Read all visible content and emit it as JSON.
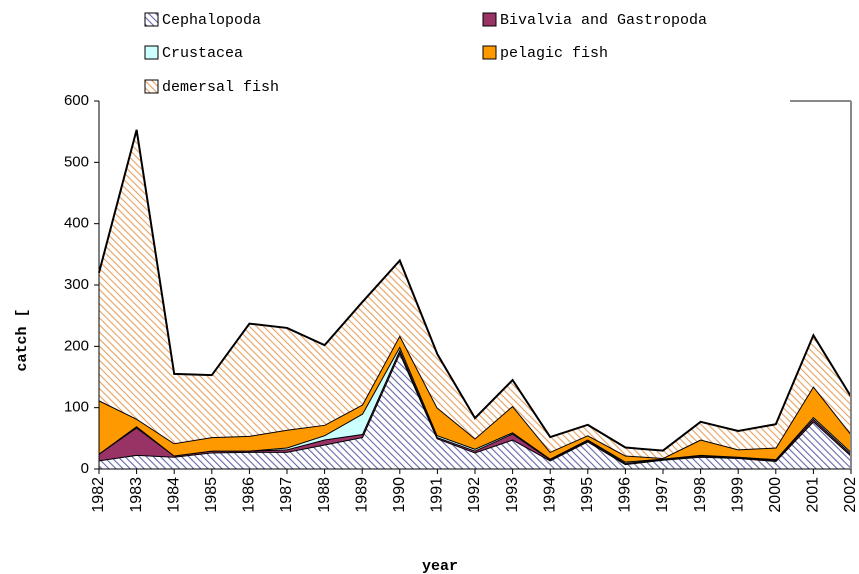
{
  "chart_data": {
    "type": "stacked-area",
    "x_label": "year",
    "y_label": "catch [",
    "categories": [
      "1982",
      "1983",
      "1984",
      "1985",
      "1986",
      "1987",
      "1988",
      "1989",
      "1990",
      "1991",
      "1992",
      "1993",
      "1994",
      "1995",
      "1996",
      "1997",
      "1998",
      "1999",
      "2000",
      "2001",
      "2002"
    ],
    "ylim": [
      0,
      600
    ],
    "yticks": [
      0,
      100,
      200,
      300,
      400,
      500,
      600
    ],
    "series": [
      {
        "name": "Cephalopoda",
        "color": "#6666aa",
        "hatched": true,
        "values": [
          14,
          23,
          20,
          27,
          28,
          28,
          40,
          52,
          190,
          50,
          27,
          48,
          14,
          45,
          8,
          15,
          20,
          18,
          13,
          78,
          22
        ]
      },
      {
        "name": "Bivalvia and Gastropoda",
        "color": "#993366",
        "hatched": false,
        "values": [
          11,
          45,
          2,
          3,
          2,
          4,
          8,
          5,
          5,
          2,
          3,
          10,
          2,
          2,
          2,
          1,
          2,
          1,
          2,
          4,
          3
        ]
      },
      {
        "name": "Crustacea",
        "color": "#ccffff",
        "hatched": false,
        "values": [
          0,
          2,
          0,
          0,
          0,
          3,
          7,
          33,
          5,
          3,
          3,
          2,
          1,
          1,
          2,
          1,
          1,
          1,
          1,
          3,
          3
        ]
      },
      {
        "name": "pelagic fish",
        "color": "#ff9900",
        "hatched": false,
        "values": [
          87,
          12,
          20,
          22,
          24,
          29,
          17,
          15,
          18,
          45,
          17,
          43,
          11,
          7,
          10,
          1,
          25,
          12,
          19,
          50,
          29
        ]
      },
      {
        "name": "demersal fish",
        "color": "#e8a060",
        "hatched": true,
        "values": [
          208,
          471,
          113,
          101,
          183,
          166,
          130,
          167,
          122,
          87,
          33,
          42,
          24,
          17,
          13,
          12,
          29,
          30,
          38,
          83,
          61
        ]
      }
    ]
  }
}
